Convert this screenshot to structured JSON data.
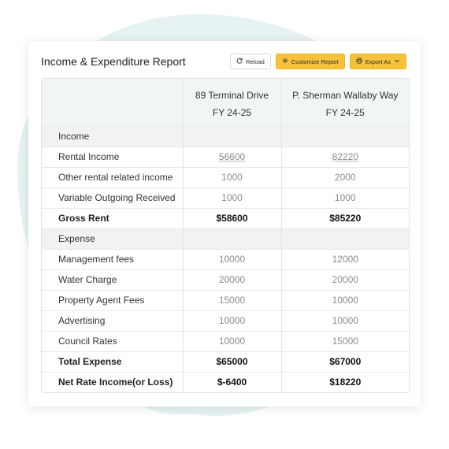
{
  "report": {
    "title": "Income & Expenditure Report"
  },
  "toolbar": {
    "reload_label": "Reload",
    "customize_label": "Customize Report",
    "export_label": "Export As",
    "accent_color": "#f7c23a"
  },
  "columns": [
    {
      "property": "89 Terminal Drive",
      "period": "FY 24-25"
    },
    {
      "property": "P. Sherman Wallaby Way",
      "period": "FY 24-25"
    }
  ],
  "income": {
    "heading": "Income",
    "rows": [
      {
        "label": "Rental Income",
        "values": [
          "56600",
          "82220"
        ]
      },
      {
        "label": "Other rental related income",
        "values": [
          "1000",
          "2000"
        ]
      },
      {
        "label": "Variable Outgoing Received",
        "values": [
          "1000",
          "1000"
        ]
      }
    ],
    "total": {
      "label": "Gross Rent",
      "values": [
        "$58600",
        "$85220"
      ]
    }
  },
  "expense": {
    "heading": "Expense",
    "rows": [
      {
        "label": "Management fees",
        "values": [
          "10000",
          "12000"
        ]
      },
      {
        "label": "Water Charge",
        "values": [
          "20000",
          "20000"
        ]
      },
      {
        "label": "Property Agent Fees",
        "values": [
          "15000",
          "10000"
        ]
      },
      {
        "label": "Advertising",
        "values": [
          "10000",
          "10000"
        ]
      },
      {
        "label": "Council Rates",
        "values": [
          "10000",
          "15000"
        ]
      }
    ],
    "total": {
      "label": "Total Expense",
      "values": [
        "$65000",
        "$67000"
      ]
    }
  },
  "net": {
    "label": "Net Rate Income(or Loss)",
    "values": [
      "$-6400",
      "$18220"
    ],
    "negative_color": "#e04848",
    "positive_color": "#27b14a"
  }
}
